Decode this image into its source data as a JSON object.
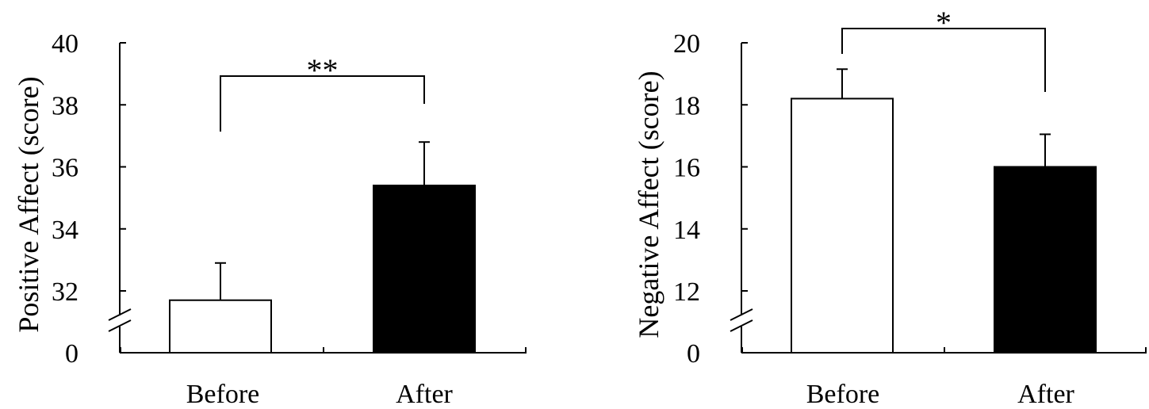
{
  "chart_data": [
    {
      "type": "bar",
      "categories": [
        "Before",
        "After"
      ],
      "values": [
        31.7,
        35.4
      ],
      "errors": [
        1.2,
        1.4
      ],
      "ylabel": "Positive Affect (score)",
      "yticks": [
        "0",
        "32",
        "34",
        "36",
        "38",
        "40"
      ],
      "axis_break": true,
      "ylim": [
        31,
        40
      ],
      "bar_fill": [
        "#ffffff",
        "#000000"
      ],
      "significance": "**"
    },
    {
      "type": "bar",
      "categories": [
        "Before",
        "After"
      ],
      "values": [
        18.2,
        16.0
      ],
      "errors": [
        0.95,
        1.05
      ],
      "ylabel": "Negative Affect (score)",
      "yticks": [
        "0",
        "12",
        "14",
        "16",
        "18",
        "20"
      ],
      "axis_break": true,
      "ylim": [
        11,
        20
      ],
      "bar_fill": [
        "#ffffff",
        "#000000"
      ],
      "significance": "*"
    }
  ]
}
